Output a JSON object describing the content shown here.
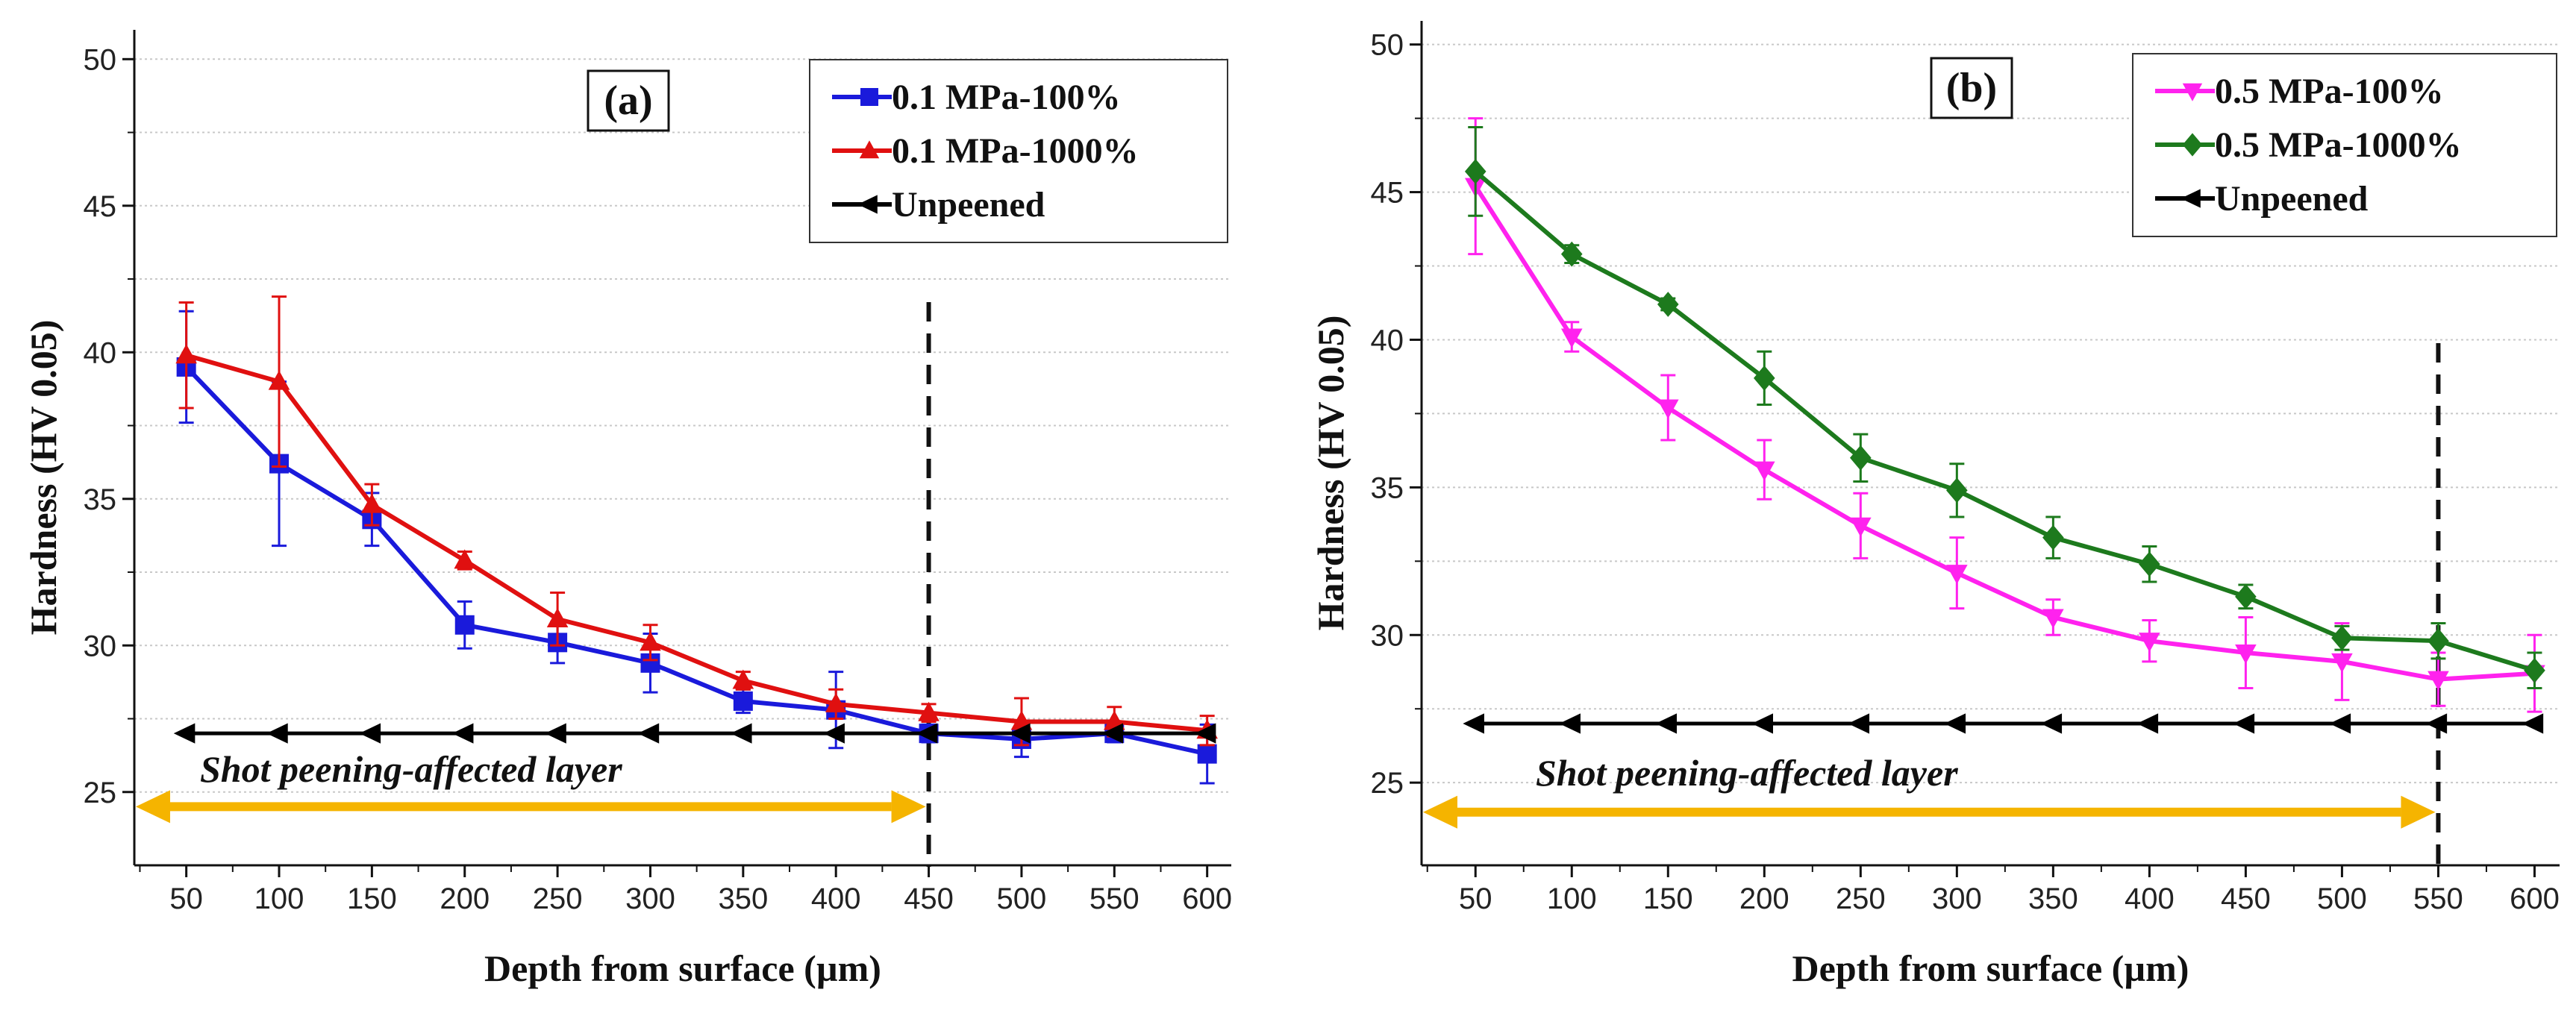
{
  "chart_data": [
    {
      "type": "line",
      "panel_label": "(a)",
      "xlabel": "Depth from surface (µm)",
      "ylabel": "Hardness (HV 0.05)",
      "xlim": [
        22,
        613
      ],
      "ylim": [
        22.5,
        51
      ],
      "x_ticks": [
        50,
        100,
        150,
        200,
        250,
        300,
        350,
        400,
        450,
        500,
        550,
        600
      ],
      "y_ticks": [
        25,
        30,
        35,
        40,
        45,
        50
      ],
      "grid": true,
      "legend_position": "top-right",
      "series": [
        {
          "name": "0.1 MPa-100%",
          "color": "#1a1adb",
          "marker": "square",
          "x": [
            50,
            100,
            150,
            200,
            250,
            300,
            350,
            400,
            450,
            500,
            550,
            600
          ],
          "values": [
            39.5,
            36.2,
            34.3,
            30.7,
            30.1,
            29.4,
            28.1,
            27.8,
            27.0,
            26.8,
            27.0,
            26.3
          ],
          "errors": [
            1.9,
            2.8,
            0.9,
            0.8,
            0.7,
            1.0,
            0.4,
            1.3,
            0.3,
            0.6,
            0.3,
            1.0
          ]
        },
        {
          "name": "0.1 MPa-1000%",
          "color": "#e01010",
          "marker": "triangle",
          "x": [
            50,
            100,
            150,
            200,
            250,
            300,
            350,
            400,
            450,
            500,
            550,
            600
          ],
          "values": [
            39.9,
            39.0,
            34.8,
            32.9,
            30.9,
            30.1,
            28.8,
            28.0,
            27.7,
            27.4,
            27.4,
            27.1
          ],
          "errors": [
            1.8,
            2.9,
            0.7,
            0.3,
            0.9,
            0.6,
            0.3,
            0.5,
            0.3,
            0.8,
            0.5,
            0.5
          ]
        },
        {
          "name": "Unpeened",
          "color": "#000000",
          "marker": "left-triangle",
          "x": [
            50,
            100,
            150,
            200,
            250,
            300,
            350,
            400,
            450,
            500,
            550,
            600
          ],
          "values": [
            27.0,
            27.0,
            27.0,
            27.0,
            27.0,
            27.0,
            27.0,
            27.0,
            27.0,
            27.0,
            27.0,
            27.0
          ]
        }
      ],
      "vline_x": 450,
      "annotation": {
        "text": "Shot peening-affected layer",
        "arrow_from": 22,
        "arrow_to": 450,
        "arrow_y": 24.5,
        "arrow_color": "#f5b400"
      }
    },
    {
      "type": "line",
      "panel_label": "(b)",
      "xlabel": "Depth from surface (µm)",
      "ylabel": "Hardness (HV 0.05)",
      "xlim": [
        22,
        613
      ],
      "ylim": [
        22.2,
        50.8
      ],
      "x_ticks": [
        50,
        100,
        150,
        200,
        250,
        300,
        350,
        400,
        450,
        500,
        550,
        600
      ],
      "y_ticks": [
        25,
        30,
        35,
        40,
        45,
        50
      ],
      "grid": true,
      "legend_position": "top-right",
      "series": [
        {
          "name": "0.5 MPa-100%",
          "color": "#ff22ee",
          "marker": "down-triangle",
          "x": [
            50,
            100,
            150,
            200,
            250,
            300,
            350,
            400,
            450,
            500,
            550,
            600
          ],
          "values": [
            45.2,
            40.1,
            37.7,
            35.6,
            33.7,
            32.1,
            30.6,
            29.8,
            29.4,
            29.1,
            28.5,
            28.7
          ],
          "errors": [
            2.3,
            0.5,
            1.1,
            1.0,
            1.1,
            1.2,
            0.6,
            0.7,
            1.2,
            1.3,
            0.9,
            1.3
          ]
        },
        {
          "name": "0.5 MPa-1000%",
          "color": "#1d7a1d",
          "marker": "diamond",
          "x": [
            50,
            100,
            150,
            200,
            250,
            300,
            350,
            400,
            450,
            500,
            550,
            600
          ],
          "values": [
            45.7,
            42.9,
            41.2,
            38.7,
            36.0,
            34.9,
            33.3,
            32.4,
            31.3,
            29.9,
            29.8,
            28.8
          ],
          "errors": [
            1.5,
            0.3,
            0.2,
            0.9,
            0.8,
            0.9,
            0.7,
            0.6,
            0.4,
            0.4,
            0.6,
            0.6
          ]
        },
        {
          "name": "Unpeened",
          "color": "#000000",
          "marker": "left-triangle",
          "x": [
            50,
            100,
            150,
            200,
            250,
            300,
            350,
            400,
            450,
            500,
            550,
            600
          ],
          "values": [
            27.0,
            27.0,
            27.0,
            27.0,
            27.0,
            27.0,
            27.0,
            27.0,
            27.0,
            27.0,
            27.0,
            27.0
          ]
        }
      ],
      "vline_x": 550,
      "annotation": {
        "text": "Shot peening-affected layer",
        "arrow_from": 22,
        "arrow_to": 550,
        "arrow_y": 24.0,
        "arrow_color": "#f5b400"
      }
    }
  ]
}
